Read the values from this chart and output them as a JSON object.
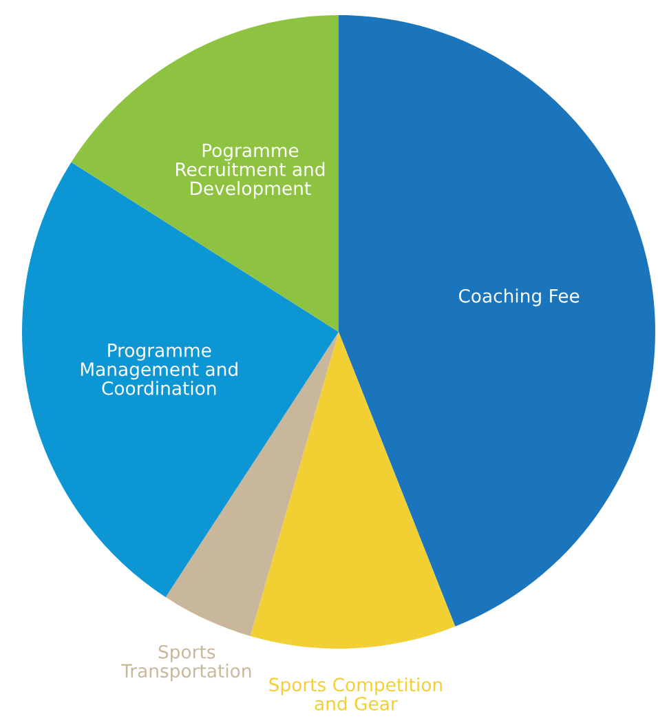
{
  "chart_data": {
    "type": "pie",
    "categories": [
      "Coaching Fee",
      "Sports Competition\nand Gear",
      "Sports\nTransportation",
      "Programme\nManagement and\nCoordination",
      "Pogramme\nRecruitment and\nDevelopment"
    ],
    "values": [
      44,
      10.5,
      4.7,
      24.8,
      16
    ],
    "colors": [
      "#1a75bc",
      "#f2cf33",
      "#c8b79a",
      "#0d96d4",
      "#8dc340"
    ]
  }
}
